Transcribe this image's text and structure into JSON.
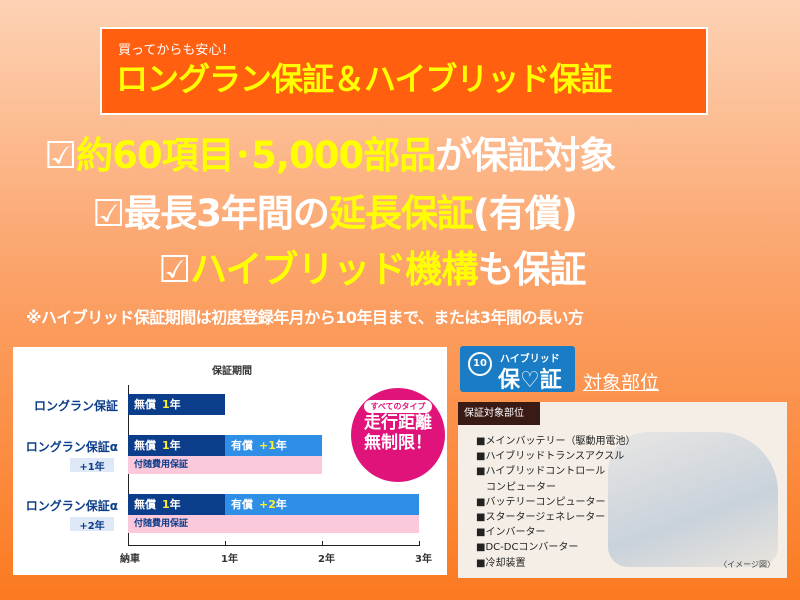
{
  "header": {
    "subtitle": "買ってからも安心！",
    "title": "ロングラン保証＆ハイブリッド保証"
  },
  "points": [
    {
      "check": "☑",
      "highlight": "約60項目･5,000部品",
      "rest": "が保証対象"
    },
    {
      "check": "☑",
      "pre": "最長3年間の",
      "highlight": "延長保証",
      "rest": "(有償)"
    },
    {
      "check": "☑",
      "highlight": "ハイブリッド機構",
      "rest": "も保証"
    }
  ],
  "note": "※ハイブリッド保証期間は初度登録年月から10年目まで、または3年間の長い方",
  "chart_data": {
    "type": "bar",
    "orientation": "horizontal",
    "stacked": true,
    "title": "保証期間",
    "x_ticks": [
      "納車",
      "1年",
      "2年",
      "3年"
    ],
    "xlim": [
      0,
      3
    ],
    "rows": [
      {
        "label": "ロングラン保証",
        "sublabel": "",
        "segments": [
          {
            "text": "無償",
            "num": "1",
            "unit": "年",
            "from": 0,
            "to": 1,
            "color": "#0b3d8a"
          }
        ],
        "extra": null
      },
      {
        "label": "ロングラン保証α",
        "sublabel": "+1年",
        "segments": [
          {
            "text": "無償",
            "num": "1",
            "unit": "年",
            "from": 0,
            "to": 1,
            "color": "#0b3d8a"
          },
          {
            "text": "有償",
            "num": "+1",
            "unit": "年",
            "from": 1,
            "to": 2,
            "color": "#2f8fe6"
          }
        ],
        "extra": {
          "text": "付随費用保証",
          "to": 2,
          "color": "#fbc8dc"
        }
      },
      {
        "label": "ロングラン保証α",
        "sublabel": "+2年",
        "segments": [
          {
            "text": "無償",
            "num": "1",
            "unit": "年",
            "from": 0,
            "to": 1,
            "color": "#0b3d8a"
          },
          {
            "text": "有償",
            "num": "+2",
            "unit": "年",
            "from": 1,
            "to": 3,
            "color": "#2f8fe6"
          }
        ],
        "extra": {
          "text": "付随費用保証",
          "to": 3,
          "color": "#fbc8dc"
        }
      }
    ]
  },
  "mileage_badge": {
    "pill": "すべてのタイプ",
    "line1": "走行距離",
    "line2": "無制限！"
  },
  "hybrid_badge": {
    "years": "10",
    "top": "ハイブリッド",
    "bottom": "保♡証"
  },
  "target_link": "対象部位",
  "parts_box": {
    "tab": "保証対象部位",
    "items": [
      "■メインバッテリー（駆動用電池）",
      "■ハイブリッドトランスアクスル",
      "■ハイブリッドコントロール",
      "　コンピューター",
      "■バッテリーコンピューター",
      "■スタータージェネレーター",
      "■インバーター",
      "■DC-DCコンバーター",
      "■冷却装置"
    ],
    "caption": "〈イメージ図〉"
  }
}
